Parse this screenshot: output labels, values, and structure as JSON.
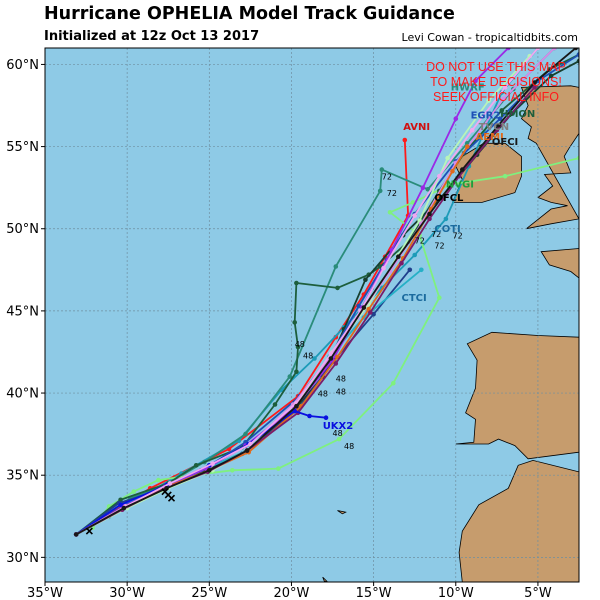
{
  "header": {
    "title": "Hurricane OPHELIA Model Track Guidance",
    "subtitle": "Initialized at 12z Oct 13 2017",
    "credit": "Levi Cowan - tropicaltidbits.com"
  },
  "warning": {
    "lines": [
      "DO NOT USE THIS MAP",
      "TO MAKE DECISIONS!",
      "SEEK OFFICIAL INFO"
    ],
    "color": "#ff1a1a"
  },
  "axes": {
    "lon_range": [
      -35,
      -2.5
    ],
    "lat_range": [
      28.5,
      61
    ],
    "x_ticks": [
      {
        "value": -35,
        "label": "35°W"
      },
      {
        "value": -30,
        "label": "30°W"
      },
      {
        "value": -25,
        "label": "25°W"
      },
      {
        "value": -20,
        "label": "20°W"
      },
      {
        "value": -15,
        "label": "15°W"
      },
      {
        "value": -10,
        "label": "10°W"
      },
      {
        "value": -5,
        "label": "5°W"
      }
    ],
    "y_ticks": [
      {
        "value": 30,
        "label": "30°N"
      },
      {
        "value": 35,
        "label": "35°N"
      },
      {
        "value": 40,
        "label": "40°N"
      },
      {
        "value": 45,
        "label": "45°N"
      },
      {
        "value": 50,
        "label": "50°N"
      },
      {
        "value": 55,
        "label": "55°N"
      },
      {
        "value": 60,
        "label": "60°N"
      }
    ],
    "grid": true
  },
  "colors": {
    "ocean": "#8ecae6",
    "land": "#c69c6d",
    "coast": "#000000",
    "grid": "#6f8fa0"
  },
  "land": [
    [
      [
        -10,
        36.9
      ],
      [
        -8.9,
        37.0
      ],
      [
        -8.8,
        38.4
      ],
      [
        -9.4,
        38.8
      ],
      [
        -8.8,
        40.3
      ],
      [
        -8.7,
        42.0
      ],
      [
        -9.3,
        43.0
      ],
      [
        -7.8,
        43.7
      ],
      [
        -5.0,
        43.5
      ],
      [
        -2.5,
        43.4
      ],
      [
        -2.5,
        36.4
      ],
      [
        -5.6,
        36.0
      ],
      [
        -6.4,
        36.8
      ],
      [
        -7.4,
        37.2
      ],
      [
        -8.0,
        36.9
      ]
    ],
    [
      [
        -2.5,
        35.2
      ],
      [
        -5.3,
        35.9
      ],
      [
        -6.2,
        35.6
      ],
      [
        -6.8,
        34.2
      ],
      [
        -8.6,
        33.2
      ],
      [
        -9.6,
        31.6
      ],
      [
        -9.8,
        30.3
      ],
      [
        -9.6,
        28.5
      ],
      [
        -2.5,
        28.5
      ]
    ],
    [
      [
        -10.2,
        51.6
      ],
      [
        -9.6,
        53.0
      ],
      [
        -10.0,
        53.8
      ],
      [
        -9.6,
        54.4
      ],
      [
        -8.3,
        55.2
      ],
      [
        -7.0,
        55.2
      ],
      [
        -6.0,
        54.4
      ],
      [
        -6.0,
        53.2
      ],
      [
        -6.4,
        52.2
      ],
      [
        -8.4,
        51.6
      ]
    ],
    [
      [
        -6.0,
        58.6
      ],
      [
        -3.0,
        58.7
      ],
      [
        -2.5,
        58.6
      ],
      [
        -2.5,
        55.8
      ],
      [
        -3.1,
        54.9
      ],
      [
        -3.4,
        54.4
      ],
      [
        -3.0,
        53.4
      ],
      [
        -4.6,
        53.3
      ],
      [
        -4.1,
        52.6
      ],
      [
        -5.0,
        51.9
      ],
      [
        -4.2,
        51.6
      ],
      [
        -3.2,
        51.4
      ],
      [
        -4.2,
        51.2
      ],
      [
        -5.7,
        50.0
      ],
      [
        -4.2,
        50.3
      ],
      [
        -2.5,
        50.6
      ],
      [
        -2.5,
        50.6
      ],
      [
        -5.1,
        55.2
      ],
      [
        -5.6,
        55.5
      ],
      [
        -5.4,
        56.2
      ],
      [
        -6.0,
        56.7
      ],
      [
        -5.6,
        57.5
      ]
    ],
    [
      [
        -4.8,
        48.6
      ],
      [
        -2.5,
        48.8
      ],
      [
        -2.5,
        47.0
      ],
      [
        -3.0,
        47.4
      ],
      [
        -4.3,
        47.8
      ]
    ],
    [
      [
        -18.1,
        28.8
      ],
      [
        -17.8,
        28.5
      ],
      [
        -18.0,
        28.55
      ]
    ],
    [
      [
        -17.2,
        32.85
      ],
      [
        -16.7,
        32.75
      ],
      [
        -16.9,
        32.65
      ]
    ]
  ],
  "tracks": [
    {
      "color": "#ff1a1a",
      "points": [
        [
          -33.1,
          31.4
        ],
        [
          -28.6,
          34.2
        ],
        [
          -23.8,
          36.6
        ],
        [
          -19.6,
          39.8
        ],
        [
          -17.3,
          43.4
        ],
        [
          -15.6,
          46.0
        ],
        [
          -14.3,
          48.3
        ],
        [
          -12.9,
          50.8
        ],
        [
          -13.1,
          55.4
        ]
      ]
    },
    {
      "color": "#1c9bb8",
      "points": [
        [
          -33.1,
          31.4
        ],
        [
          -29.8,
          33.3
        ],
        [
          -26.7,
          35.1
        ],
        [
          -23.2,
          37.1
        ],
        [
          -20.6,
          40.2
        ],
        [
          -18.6,
          42.1
        ],
        [
          -16.8,
          44.0
        ],
        [
          -14.5,
          46.4
        ],
        [
          -12.5,
          48.4
        ],
        [
          -10.6,
          50.6
        ],
        [
          -9.2,
          53.8
        ],
        [
          -7.2,
          58.3
        ],
        [
          -5.0,
          61.0
        ]
      ]
    },
    {
      "color": "#2a8c7a",
      "points": [
        [
          -33.1,
          31.4
        ],
        [
          -29.8,
          33.6
        ],
        [
          -27.7,
          34.4
        ],
        [
          -25.3,
          35.8
        ],
        [
          -22.8,
          37.5
        ],
        [
          -20.1,
          41.0
        ],
        [
          -17.3,
          47.7
        ],
        [
          -14.6,
          52.3
        ],
        [
          -14.5,
          53.6
        ],
        [
          -11.7,
          52.4
        ],
        [
          -9.3,
          55.2
        ],
        [
          -6.5,
          58.5
        ],
        [
          -4.0,
          61.0
        ]
      ]
    },
    {
      "color": "#7ff07f",
      "points": [
        [
          -32.1,
          31.8
        ],
        [
          -31.1,
          33.1
        ],
        [
          -29.6,
          34.0
        ],
        [
          -28.1,
          34.7
        ],
        [
          -26.0,
          35.0
        ],
        [
          -23.6,
          35.3
        ],
        [
          -20.8,
          35.4
        ],
        [
          -17.1,
          37.2
        ],
        [
          -13.8,
          40.6
        ],
        [
          -11.0,
          45.8
        ],
        [
          -12.2,
          49.6
        ],
        [
          -14.0,
          51.0
        ],
        [
          -12.6,
          51.6
        ],
        [
          -10.3,
          52.7
        ],
        [
          -7.0,
          53.2
        ],
        [
          -2.5,
          54.3
        ]
      ]
    },
    {
      "color": "#1d5e3c",
      "points": [
        [
          -33.1,
          31.4
        ],
        [
          -30.4,
          33.5
        ],
        [
          -27.5,
          34.5
        ],
        [
          -25.8,
          35.6
        ],
        [
          -23.0,
          36.7
        ],
        [
          -21.0,
          39.3
        ],
        [
          -19.7,
          41.3
        ],
        [
          -19.6,
          42.8
        ],
        [
          -19.8,
          44.3
        ],
        [
          -19.7,
          46.7
        ],
        [
          -17.2,
          46.4
        ],
        [
          -15.3,
          47.2
        ],
        [
          -14.6,
          47.7
        ],
        [
          -12.9,
          49.2
        ],
        [
          -11.0,
          52.3
        ],
        [
          -9.5,
          54.6
        ],
        [
          -7.2,
          57.2
        ],
        [
          -4.3,
          59.7
        ],
        [
          -2.5,
          60.6
        ]
      ]
    },
    {
      "color": "#173f2e",
      "points": [
        [
          -33.1,
          31.4
        ],
        [
          -31.1,
          32.5
        ],
        [
          -28.1,
          34.1
        ],
        [
          -25.4,
          35.2
        ],
        [
          -22.8,
          36.4
        ],
        [
          -19.8,
          39.0
        ],
        [
          -18.1,
          41.0
        ],
        [
          -16.8,
          43.9
        ],
        [
          -15.5,
          46.9
        ],
        [
          -13.2,
          49.6
        ],
        [
          -10.9,
          51.9
        ],
        [
          -8.7,
          54.5
        ],
        [
          -6.6,
          57.0
        ],
        [
          -4.2,
          59.3
        ],
        [
          -2.5,
          60.2
        ]
      ]
    },
    {
      "color": "#1d4fb5",
      "points": [
        [
          -33.1,
          31.4
        ],
        [
          -30.1,
          33.2
        ],
        [
          -27.6,
          34.4
        ],
        [
          -25.1,
          35.5
        ],
        [
          -22.8,
          37.0
        ],
        [
          -19.5,
          39.8
        ],
        [
          -17.6,
          42.3
        ],
        [
          -15.9,
          45.3
        ],
        [
          -14.2,
          48.1
        ],
        [
          -12.5,
          50.9
        ],
        [
          -10.0,
          54.1
        ],
        [
          -7.3,
          56.7
        ],
        [
          -5.0,
          59.0
        ],
        [
          -2.5,
          60.6
        ]
      ]
    },
    {
      "color": "#1f3f8c",
      "points": [
        [
          -33.1,
          31.4
        ],
        [
          -30.5,
          33.3
        ],
        [
          -28.0,
          34.1
        ],
        [
          -25.5,
          35.3
        ],
        [
          -23.0,
          36.3
        ],
        [
          -19.6,
          39.0
        ],
        [
          -17.4,
          42.0
        ],
        [
          -15.0,
          44.8
        ],
        [
          -12.8,
          47.5
        ]
      ]
    },
    {
      "color": "#26b0c6",
      "points": [
        [
          -33.1,
          31.4
        ],
        [
          -30.4,
          33.2
        ],
        [
          -27.8,
          34.2
        ],
        [
          -25.2,
          35.4
        ],
        [
          -22.7,
          36.5
        ],
        [
          -19.8,
          39.1
        ],
        [
          -17.7,
          42.2
        ],
        [
          -15.6,
          44.6
        ],
        [
          -12.1,
          47.5
        ]
      ]
    },
    {
      "color": "#b8f5b8",
      "points": [
        [
          -33.1,
          31.4
        ],
        [
          -30.0,
          33.0
        ],
        [
          -27.5,
          34.2
        ],
        [
          -24.8,
          35.3
        ],
        [
          -22.5,
          36.6
        ],
        [
          -19.6,
          39.5
        ],
        [
          -17.5,
          42.5
        ],
        [
          -15.3,
          45.4
        ],
        [
          -13.5,
          48.4
        ],
        [
          -12.2,
          50.5
        ],
        [
          -10.5,
          54.3
        ],
        [
          -8.0,
          57.8
        ],
        [
          -5.5,
          60.5
        ]
      ]
    },
    {
      "color": "#d58be8",
      "points": [
        [
          -33.1,
          31.4
        ],
        [
          -30.3,
          33.0
        ],
        [
          -27.5,
          34.4
        ],
        [
          -24.9,
          35.6
        ],
        [
          -22.5,
          36.9
        ],
        [
          -19.9,
          39.3
        ],
        [
          -17.7,
          42.1
        ],
        [
          -16.0,
          44.6
        ],
        [
          -14.0,
          47.4
        ],
        [
          -12.1,
          50.3
        ],
        [
          -10.0,
          54.0
        ],
        [
          -7.1,
          57.9
        ],
        [
          -4.0,
          61.0
        ]
      ]
    },
    {
      "color": "#9a2ae6",
      "points": [
        [
          -33.1,
          31.4
        ],
        [
          -30.2,
          33.1
        ],
        [
          -27.7,
          34.3
        ],
        [
          -25.2,
          35.4
        ],
        [
          -22.8,
          36.8
        ],
        [
          -19.8,
          39.1
        ],
        [
          -17.5,
          42.0
        ],
        [
          -15.7,
          45.2
        ],
        [
          -13.9,
          48.7
        ],
        [
          -12.0,
          52.5
        ],
        [
          -10.0,
          56.7
        ],
        [
          -8.8,
          59.0
        ],
        [
          -6.8,
          61.0
        ]
      ]
    },
    {
      "color": "#e06a1c",
      "points": [
        [
          -33.1,
          31.4
        ],
        [
          -30.1,
          33.1
        ],
        [
          -27.6,
          34.3
        ],
        [
          -25.0,
          35.3
        ],
        [
          -22.6,
          36.4
        ],
        [
          -19.4,
          39.2
        ],
        [
          -17.2,
          42.2
        ],
        [
          -15.3,
          45.1
        ],
        [
          -13.2,
          48.2
        ],
        [
          -11.5,
          51.2
        ],
        [
          -10.2,
          53.5
        ],
        [
          -9.3,
          55.0
        ]
      ]
    },
    {
      "color": "#7a1c6a",
      "points": [
        [
          -33.1,
          31.4
        ],
        [
          -30.3,
          32.9
        ],
        [
          -27.7,
          34.2
        ],
        [
          -25.1,
          35.2
        ],
        [
          -22.7,
          36.5
        ],
        [
          -19.6,
          38.8
        ],
        [
          -17.3,
          41.8
        ],
        [
          -15.2,
          44.9
        ],
        [
          -13.3,
          47.9
        ],
        [
          -11.6,
          50.6
        ],
        [
          -9.8,
          53.2
        ],
        [
          -7.5,
          56.0
        ],
        [
          -5.2,
          58.6
        ]
      ]
    },
    {
      "color": "#0a10e0",
      "points": [
        [
          -33.1,
          31.4
        ],
        [
          -30.4,
          33.2
        ],
        [
          -27.6,
          34.4
        ],
        [
          -25.0,
          35.6
        ],
        [
          -22.6,
          36.9
        ],
        [
          -19.8,
          38.9
        ],
        [
          -18.9,
          38.6
        ],
        [
          -17.9,
          38.5
        ]
      ]
    },
    {
      "color": "#f0a8f0",
      "points": [
        [
          -33.1,
          31.4
        ],
        [
          -30.1,
          33.1
        ],
        [
          -27.4,
          34.5
        ],
        [
          -24.8,
          35.7
        ],
        [
          -22.5,
          36.9
        ],
        [
          -19.7,
          39.4
        ],
        [
          -17.6,
          42.4
        ],
        [
          -15.8,
          45.0
        ],
        [
          -14.4,
          47.6
        ],
        [
          -12.5,
          50.8
        ],
        [
          -11.0,
          53.2
        ],
        [
          -9.0,
          56.0
        ],
        [
          -7.0,
          58.6
        ],
        [
          -5.0,
          61.0
        ]
      ]
    },
    {
      "color": "#181818",
      "points": [
        [
          -33.1,
          31.4
        ],
        [
          -30.2,
          33.0
        ],
        [
          -27.6,
          34.2
        ],
        [
          -25.0,
          35.3
        ],
        [
          -22.7,
          36.5
        ],
        [
          -19.7,
          39.2
        ],
        [
          -17.6,
          42.1
        ],
        [
          -15.6,
          45.2
        ],
        [
          -13.5,
          48.3
        ],
        [
          -11.6,
          50.9
        ],
        [
          -9.6,
          53.6
        ],
        [
          -7.4,
          56.3
        ],
        [
          -5.2,
          58.9
        ],
        [
          -2.7,
          61.0
        ]
      ]
    }
  ],
  "labels": [
    {
      "text": "AVNI",
      "lon": -13.2,
      "lat": 56.0,
      "color": "#d01010"
    },
    {
      "text": "EGR2",
      "lon": -9.1,
      "lat": 56.7,
      "color": "#1d4fb5"
    },
    {
      "text": "AEMI",
      "lon": -8.8,
      "lat": 55.4,
      "color": "#e06a1c"
    },
    {
      "text": "OFCI",
      "lon": -7.8,
      "lat": 55.1,
      "color": "#181818"
    },
    {
      "text": "HWRF",
      "lon": -10.3,
      "lat": 58.4,
      "color": "#2a8c7a"
    },
    {
      "text": "TVCN",
      "lon": -8.6,
      "lat": 56.0,
      "color": "#808080"
    },
    {
      "text": "HMON",
      "lon": -7.3,
      "lat": 56.8,
      "color": "#1d5e3c"
    },
    {
      "text": "NVGI",
      "lon": -10.6,
      "lat": 52.5,
      "color": "#1d9e3c"
    },
    {
      "text": "OFCL",
      "lon": -11.3,
      "lat": 51.7,
      "color": "#000000"
    },
    {
      "text": "COTI",
      "lon": -11.3,
      "lat": 49.8,
      "color": "#1c6b9e"
    },
    {
      "text": "CTCI",
      "lon": -13.3,
      "lat": 45.6,
      "color": "#1c6b9e"
    },
    {
      "text": "UKX2",
      "lon": -18.1,
      "lat": 37.8,
      "color": "#0a10e0"
    }
  ],
  "hour_labels": [
    {
      "text": "72",
      "lon": -14.5,
      "lat": 53.0
    },
    {
      "text": "72",
      "lon": -14.2,
      "lat": 52.0
    },
    {
      "text": "72",
      "lon": -12.5,
      "lat": 49.1
    },
    {
      "text": "72",
      "lon": -11.3,
      "lat": 48.8
    },
    {
      "text": "72",
      "lon": -11.5,
      "lat": 49.5
    },
    {
      "text": "72",
      "lon": -10.2,
      "lat": 49.4
    },
    {
      "text": "48",
      "lon": -19.8,
      "lat": 42.8
    },
    {
      "text": "48",
      "lon": -19.3,
      "lat": 42.1
    },
    {
      "text": "48",
      "lon": -17.3,
      "lat": 40.7
    },
    {
      "text": "48",
      "lon": -18.4,
      "lat": 39.8
    },
    {
      "text": "48",
      "lon": -17.3,
      "lat": 39.9
    },
    {
      "text": "48",
      "lon": -17.5,
      "lat": 37.4
    },
    {
      "text": "48",
      "lon": -16.8,
      "lat": 36.6
    }
  ],
  "markers": [
    {
      "lon": -27.5,
      "lat": 33.8
    },
    {
      "lon": -27.3,
      "lat": 33.6
    },
    {
      "lon": -27.7,
      "lat": 34.0
    },
    {
      "lon": -32.3,
      "lat": 31.6
    }
  ]
}
